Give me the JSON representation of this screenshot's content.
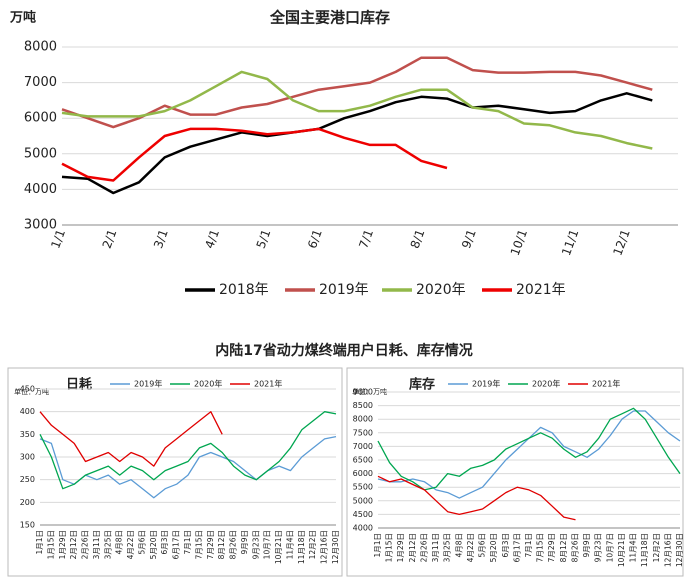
{
  "section_title": "内陆17省动力煤终端用户日耗、库存情况",
  "chart_data": [
    {
      "type": "line",
      "title": "全国主要港口库存",
      "y_label": "万吨",
      "legend": "bottom",
      "grid": true,
      "categories": [
        "1/1",
        null,
        "2/1",
        null,
        "3/1",
        null,
        "4/1",
        null,
        "5/1",
        null,
        "6/1",
        null,
        "7/1",
        null,
        "8/1",
        null,
        "9/1",
        null,
        "10/1",
        null,
        "11/1",
        null,
        "12/1",
        null
      ],
      "ylim": [
        3000,
        8000
      ],
      "yticks": [
        3000,
        4000,
        5000,
        6000,
        7000,
        8000
      ],
      "series": [
        {
          "name": "2018年",
          "color": "#000000",
          "values": [
            4350,
            4300,
            3900,
            4200,
            4900,
            5200,
            5400,
            5600,
            5500,
            5600,
            5700,
            6000,
            6200,
            6450,
            6600,
            6550,
            6300,
            6350,
            6250,
            6150,
            6200,
            6500,
            6700,
            6500
          ]
        },
        {
          "name": "2019年",
          "color": "#c0504d",
          "values": [
            6250,
            6000,
            5750,
            6000,
            6350,
            6100,
            6100,
            6300,
            6400,
            6600,
            6800,
            6900,
            7000,
            7300,
            7700,
            7700,
            7350,
            7280,
            7280,
            7300,
            7300,
            7200,
            7000,
            6800
          ]
        },
        {
          "name": "2020年",
          "color": "#92b84a",
          "values": [
            6150,
            6050,
            6050,
            6050,
            6200,
            6500,
            6900,
            7300,
            7100,
            6500,
            6200,
            6200,
            6350,
            6600,
            6800,
            6800,
            6300,
            6200,
            5850,
            5800,
            5600,
            5500,
            5300,
            5150
          ]
        },
        {
          "name": "2021年",
          "color": "#ee0000",
          "values": [
            4720,
            4350,
            4250,
            4900,
            5500,
            5700,
            5700,
            5650,
            5550,
            5600,
            5700,
            5450,
            5250,
            5250,
            4800,
            4600,
            null,
            null,
            null,
            null,
            null,
            null,
            null,
            null
          ]
        }
      ]
    },
    {
      "type": "line",
      "title": "日耗",
      "y_label": "单位：万吨",
      "legend": "top",
      "grid": true,
      "categories": [
        "1月1日",
        "1月15日",
        "1月29日",
        "2月12日",
        "2月26日",
        "3月11日",
        "3月25日",
        "4月8日",
        "4月22日",
        "5月6日",
        "5月20日",
        "6月3日",
        "6月17日",
        "7月1日",
        "7月15日",
        "7月29日",
        "8月12日",
        "8月26日",
        "9月9日",
        "9月23日",
        "10月7日",
        "10月21日",
        "11月4日",
        "11月18日",
        "12月2日",
        "12月16日",
        "12月30日"
      ],
      "ylim": [
        150,
        450
      ],
      "yticks": [
        150,
        200,
        250,
        300,
        350,
        400,
        450
      ],
      "series": [
        {
          "name": "2019年",
          "color": "#5b9bd5",
          "values": [
            340,
            330,
            250,
            240,
            260,
            250,
            260,
            240,
            250,
            230,
            210,
            230,
            240,
            260,
            300,
            310,
            300,
            290,
            270,
            250,
            270,
            280,
            270,
            300,
            320,
            340,
            345
          ]
        },
        {
          "name": "2020年",
          "color": "#00a650",
          "values": [
            350,
            300,
            230,
            240,
            260,
            270,
            280,
            260,
            280,
            270,
            250,
            270,
            280,
            290,
            320,
            330,
            310,
            280,
            260,
            250,
            270,
            290,
            320,
            360,
            380,
            400,
            395
          ]
        },
        {
          "name": "2021年",
          "color": "#e00000",
          "values": [
            400,
            370,
            350,
            330,
            290,
            300,
            310,
            290,
            310,
            300,
            280,
            320,
            340,
            360,
            380,
            400,
            350,
            null,
            null,
            null,
            null,
            null,
            null,
            null,
            null,
            null,
            null
          ]
        }
      ]
    },
    {
      "type": "line",
      "title": "库存",
      "y_label": "单位：万吨",
      "legend": "top",
      "grid": true,
      "categories": [
        "1月1日",
        "1月15日",
        "1月29日",
        "2月12日",
        "2月26日",
        "3月11日",
        "3月25日",
        "4月8日",
        "4月22日",
        "5月6日",
        "5月20日",
        "6月3日",
        "6月17日",
        "7月1日",
        "7月15日",
        "7月29日",
        "8月12日",
        "8月26日",
        "9月9日",
        "9月23日",
        "10月7日",
        "10月21日",
        "11月4日",
        "11月18日",
        "12月2日",
        "12月16日",
        "12月30日"
      ],
      "ylim": [
        4000,
        9000
      ],
      "yticks": [
        4000,
        4500,
        5000,
        5500,
        6000,
        6500,
        7000,
        7500,
        8000,
        8500,
        9000
      ],
      "series": [
        {
          "name": "2019年",
          "color": "#5b9bd5",
          "values": [
            5800,
            5700,
            5700,
            5800,
            5700,
            5400,
            5300,
            5100,
            5300,
            5500,
            6000,
            6500,
            6900,
            7300,
            7700,
            7500,
            7000,
            6800,
            6600,
            6900,
            7400,
            8000,
            8300,
            8300,
            7900,
            7500,
            7200
          ]
        },
        {
          "name": "2020年",
          "color": "#00a650",
          "values": [
            7200,
            6400,
            5900,
            5700,
            5400,
            5500,
            6000,
            5900,
            6200,
            6300,
            6500,
            6900,
            7100,
            7300,
            7500,
            7300,
            6900,
            6600,
            6800,
            7300,
            8000,
            8200,
            8400,
            8000,
            7300,
            6600,
            6000
          ]
        },
        {
          "name": "2021年",
          "color": "#e00000",
          "values": [
            5900,
            5700,
            5800,
            5600,
            5400,
            5000,
            4600,
            4500,
            4600,
            4700,
            5000,
            5300,
            5500,
            5400,
            5200,
            4800,
            4400,
            4300,
            null,
            null,
            null,
            null,
            null,
            null,
            null,
            null,
            null
          ]
        }
      ]
    }
  ]
}
